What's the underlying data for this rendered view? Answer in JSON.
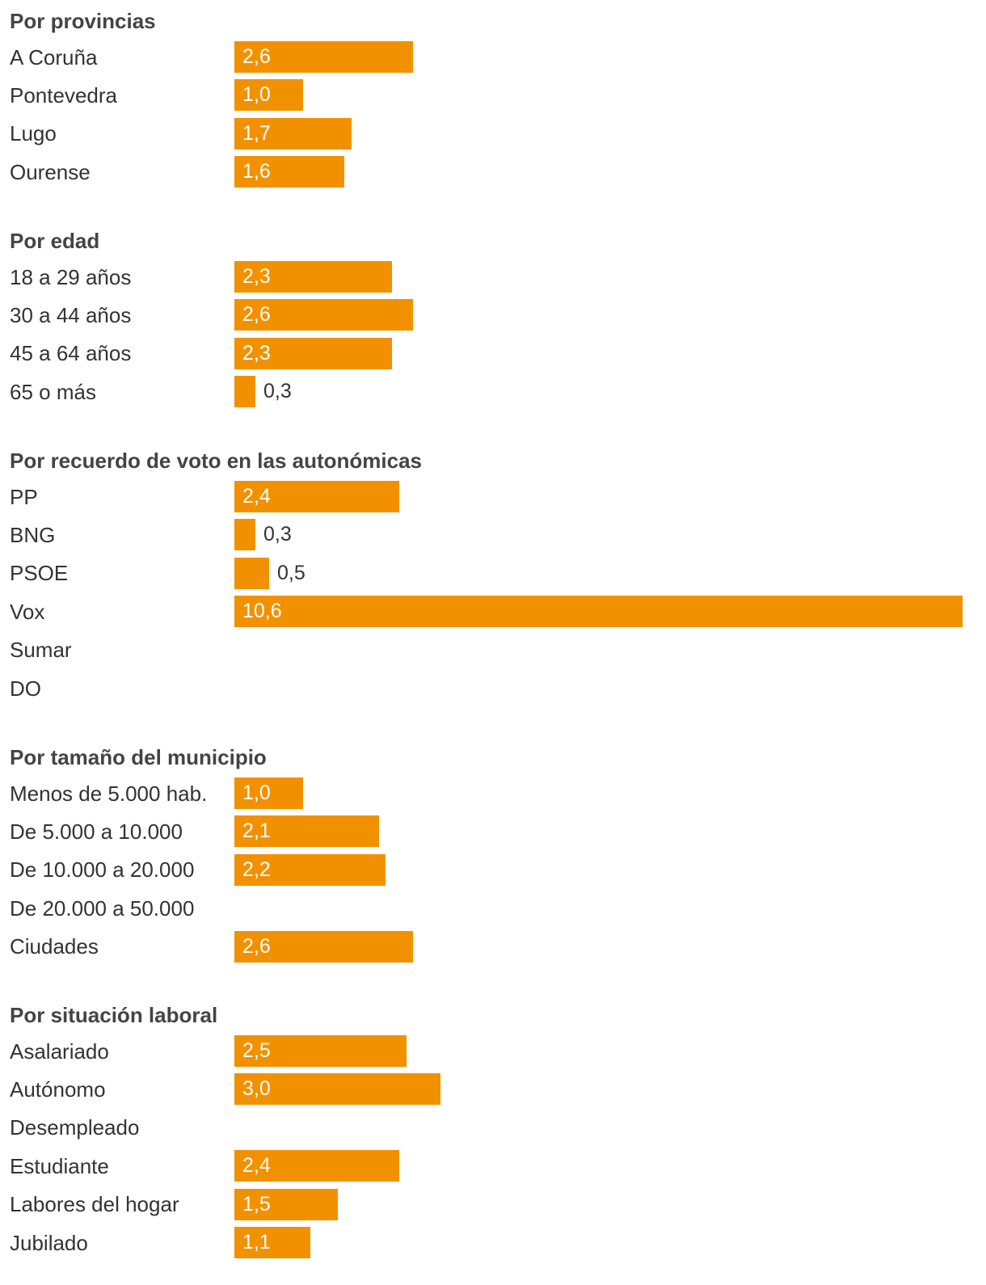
{
  "colors": {
    "bar": "#F29100",
    "label_inside": "#ffffff",
    "label_outside": "#333333",
    "title": "#444444"
  },
  "chart_data": [
    {
      "type": "bar",
      "orientation": "horizontal",
      "title": "Por provincias",
      "categories": [
        "A Coruña",
        "Pontevedra",
        "Lugo",
        "Ourense"
      ],
      "values": [
        2.6,
        1.0,
        1.7,
        1.6
      ],
      "value_labels": [
        "2,6",
        "1,0",
        "1,7",
        "1,6"
      ],
      "xlim": [
        0,
        10.6
      ]
    },
    {
      "type": "bar",
      "orientation": "horizontal",
      "title": "Por edad",
      "categories": [
        "18 a 29 años",
        "30 a 44 años",
        "45 a 64 años",
        "65 o más"
      ],
      "values": [
        2.3,
        2.6,
        2.3,
        0.3
      ],
      "value_labels": [
        "2,3",
        "2,6",
        "2,3",
        "0,3"
      ],
      "xlim": [
        0,
        10.6
      ]
    },
    {
      "type": "bar",
      "orientation": "horizontal",
      "title": "Por recuerdo de voto en las autonómicas",
      "categories": [
        "PP",
        "BNG",
        "PSOE",
        "Vox",
        "Sumar",
        "DO"
      ],
      "values": [
        2.4,
        0.3,
        0.5,
        10.6,
        null,
        null
      ],
      "value_labels": [
        "2,4",
        "0,3",
        "0,5",
        "10,6",
        "",
        ""
      ],
      "xlim": [
        0,
        10.6
      ]
    },
    {
      "type": "bar",
      "orientation": "horizontal",
      "title": "Por tamaño del municipio",
      "categories": [
        "Menos de 5.000 hab.",
        "De 5.000 a 10.000",
        "De 10.000 a 20.000",
        "De 20.000 a 50.000",
        "Ciudades"
      ],
      "values": [
        1.0,
        2.1,
        2.2,
        null,
        2.6
      ],
      "value_labels": [
        "1,0",
        "2,1",
        "2,2",
        "",
        "2,6"
      ],
      "xlim": [
        0,
        10.6
      ]
    },
    {
      "type": "bar",
      "orientation": "horizontal",
      "title": "Por situación laboral",
      "categories": [
        "Asalariado",
        "Autónomo",
        "Desempleado",
        "Estudiante",
        "Labores del hogar",
        "Jubilado"
      ],
      "values": [
        2.5,
        3.0,
        null,
        2.4,
        1.5,
        1.1
      ],
      "value_labels": [
        "2,5",
        "3,0",
        "",
        "2,4",
        "1,5",
        "1,1"
      ],
      "xlim": [
        0,
        10.6
      ]
    }
  ]
}
